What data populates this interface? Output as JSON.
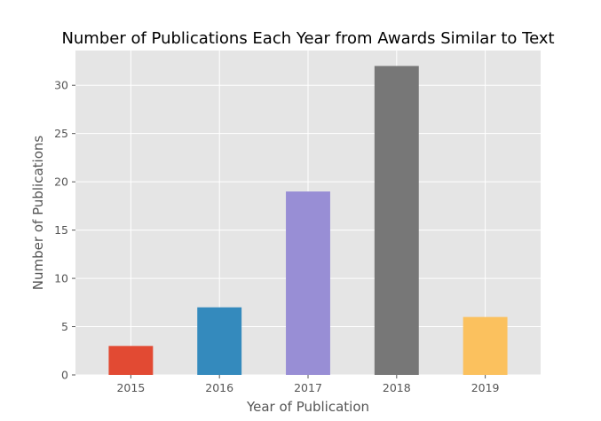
{
  "chart_data": {
    "type": "bar",
    "title": "Number of Publications Each Year from Awards Similar to Text",
    "xlabel": "Year of Publication",
    "ylabel": "Number of Publications",
    "categories": [
      "2015",
      "2016",
      "2017",
      "2018",
      "2019"
    ],
    "values": [
      3,
      7,
      19,
      32,
      6
    ],
    "colors": [
      "#E24A33",
      "#348ABD",
      "#988ED5",
      "#777777",
      "#FBC15E"
    ],
    "ylim": [
      0,
      33.6
    ],
    "yticks": [
      0,
      5,
      10,
      15,
      20,
      25,
      30
    ],
    "grid": true,
    "background": "#E5E5E5",
    "legend": "none"
  }
}
